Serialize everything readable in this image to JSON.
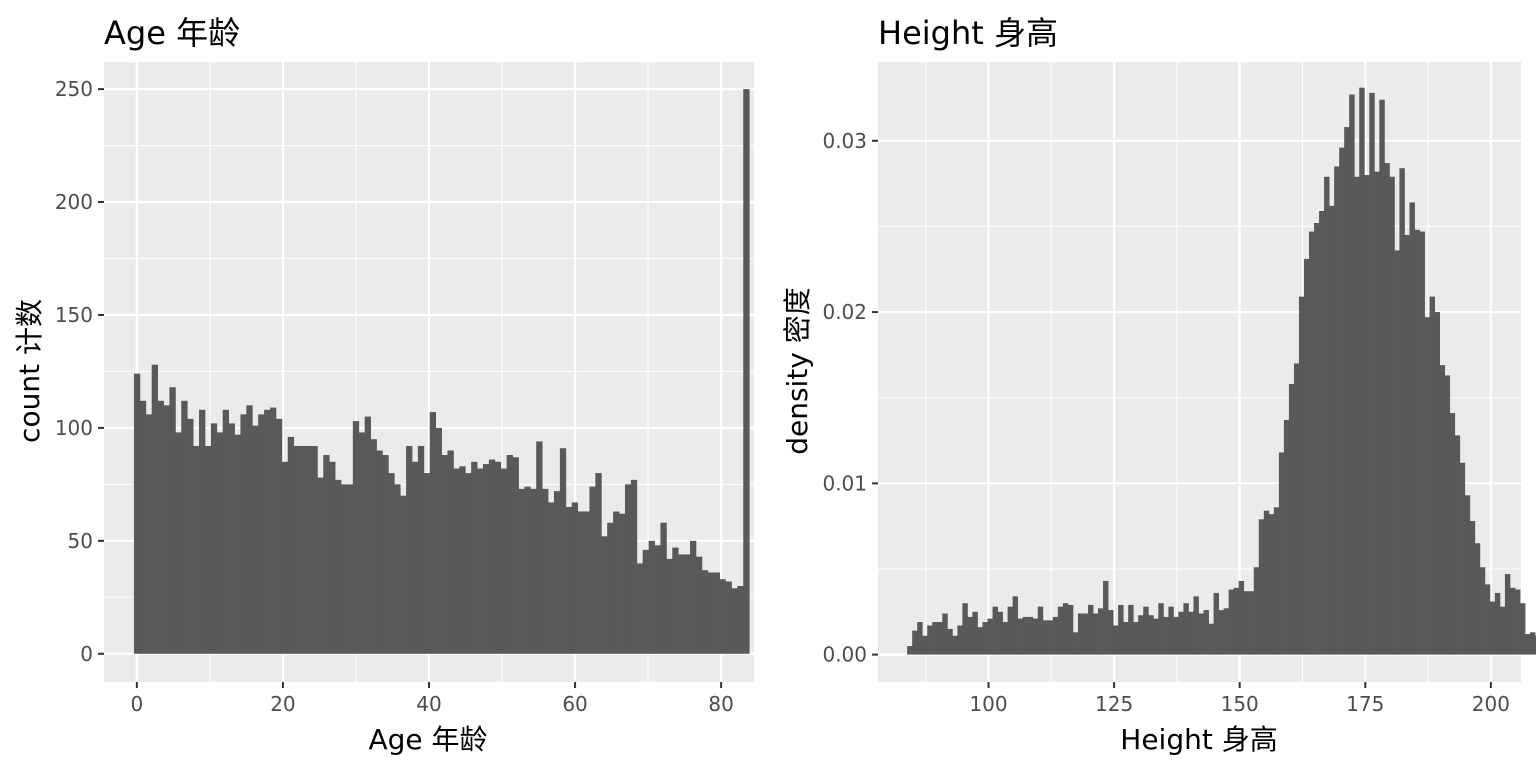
{
  "chart_data": [
    {
      "type": "bar",
      "title": "Age 年龄",
      "xlabel": "Age 年龄",
      "ylabel": "count 计数",
      "xlim": [
        -4.5,
        84.5
      ],
      "ylim": [
        -12.5,
        262
      ],
      "xticks": [
        0,
        20,
        40,
        60,
        80
      ],
      "xtick_labels": [
        "0",
        "20",
        "40",
        "60",
        "80"
      ],
      "yticks": [
        0,
        50,
        100,
        150,
        200,
        250
      ],
      "ytick_labels": [
        "0",
        "50",
        "100",
        "150",
        "200",
        "250"
      ],
      "grid": true,
      "bin_start": -0.4,
      "bin_width": 0.81,
      "values": [
        124,
        112,
        106,
        128,
        112,
        110,
        118,
        98,
        112,
        104,
        92,
        108,
        92,
        102,
        98,
        108,
        102,
        97,
        106,
        110,
        101,
        106,
        108,
        109,
        104,
        85,
        96,
        92,
        92,
        92,
        92,
        78,
        88,
        85,
        77,
        75,
        75,
        103,
        98,
        105,
        95,
        90,
        88,
        80,
        75,
        70,
        92,
        85,
        92,
        80,
        107,
        100,
        88,
        90,
        82,
        83,
        80,
        85,
        82,
        84,
        86,
        85,
        82,
        88,
        87,
        73,
        74,
        73,
        94,
        73,
        67,
        72,
        91,
        65,
        67,
        63,
        63,
        74,
        80,
        52,
        58,
        63,
        62,
        75,
        77,
        40,
        46,
        50,
        48,
        58,
        42,
        47,
        44,
        44,
        50,
        43,
        37,
        36,
        36,
        33,
        32,
        29,
        30,
        250
      ]
    },
    {
      "type": "bar",
      "title": "Height 身高",
      "xlabel": "Height 身高",
      "ylabel": "density 密度",
      "xlim": [
        78,
        206
      ],
      "ylim": [
        -0.0016,
        0.0346
      ],
      "xticks": [
        100,
        125,
        150,
        175,
        200
      ],
      "xtick_labels": [
        "100",
        "125",
        "150",
        "175",
        "200"
      ],
      "yticks": [
        0,
        0.01,
        0.02,
        0.03
      ],
      "ytick_labels": [
        "0.00",
        "0.01",
        "0.02",
        "0.03"
      ],
      "grid": true,
      "bin_start": 83.8,
      "bin_width": 1.0,
      "values": [
        0.0005,
        0.0014,
        0.0019,
        0.0011,
        0.0017,
        0.0019,
        0.0019,
        0.0024,
        0.0015,
        0.0011,
        0.0017,
        0.003,
        0.0022,
        0.0025,
        0.0016,
        0.0019,
        0.0021,
        0.0028,
        0.0025,
        0.0019,
        0.0028,
        0.0034,
        0.0021,
        0.0022,
        0.0022,
        0.0021,
        0.0028,
        0.002,
        0.002,
        0.0022,
        0.0028,
        0.003,
        0.0029,
        0.0013,
        0.0024,
        0.0024,
        0.0029,
        0.0024,
        0.0027,
        0.0043,
        0.0026,
        0.0017,
        0.0029,
        0.0019,
        0.0029,
        0.0019,
        0.0023,
        0.0028,
        0.0023,
        0.0021,
        0.003,
        0.0022,
        0.0028,
        0.0022,
        0.0025,
        0.003,
        0.0025,
        0.0034,
        0.0024,
        0.0026,
        0.0018,
        0.0036,
        0.0026,
        0.0027,
        0.0038,
        0.0039,
        0.0043,
        0.0037,
        0.0037,
        0.0051,
        0.0079,
        0.0084,
        0.0082,
        0.0086,
        0.0118,
        0.0137,
        0.0158,
        0.017,
        0.0209,
        0.0231,
        0.0247,
        0.0252,
        0.0259,
        0.0279,
        0.0262,
        0.0285,
        0.0296,
        0.0308,
        0.0327,
        0.0279,
        0.0331,
        0.028,
        0.0328,
        0.0282,
        0.0324,
        0.0287,
        0.0279,
        0.0236,
        0.0284,
        0.0245,
        0.0264,
        0.0248,
        0.0247,
        0.0197,
        0.0209,
        0.02,
        0.0169,
        0.0163,
        0.0141,
        0.0128,
        0.0112,
        0.0093,
        0.0078,
        0.0065,
        0.0051,
        0.0041,
        0.0031,
        0.0036,
        0.0028,
        0.0047,
        0.0039,
        0.0038,
        0.003,
        0.0012,
        0.0013,
        0.0011,
        0.0005,
        0.0004,
        0.0003,
        0.0002,
        0.0005
      ]
    }
  ]
}
